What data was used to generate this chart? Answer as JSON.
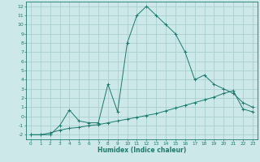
{
  "line1_x": [
    0,
    1,
    2,
    3,
    4,
    5,
    6,
    7,
    8,
    9,
    10,
    11,
    12,
    13,
    14,
    15,
    16,
    17,
    18,
    19,
    20,
    21,
    22,
    23
  ],
  "line1_y": [
    -2,
    -2,
    -2,
    -1.0,
    0.7,
    -0.5,
    -0.7,
    -0.7,
    3.5,
    0.5,
    8.0,
    11.0,
    12.0,
    11.0,
    10.0,
    9.0,
    7.0,
    4.0,
    4.5,
    3.5,
    3.0,
    2.5,
    1.5,
    1.0
  ],
  "line2_x": [
    0,
    1,
    2,
    3,
    4,
    5,
    6,
    7,
    8,
    9,
    10,
    11,
    12,
    13,
    14,
    15,
    16,
    17,
    18,
    19,
    20,
    21,
    22,
    23
  ],
  "line2_y": [
    -2,
    -2,
    -1.8,
    -1.5,
    -1.3,
    -1.2,
    -1.0,
    -0.9,
    -0.7,
    -0.5,
    -0.3,
    -0.1,
    0.1,
    0.3,
    0.6,
    0.9,
    1.2,
    1.5,
    1.8,
    2.1,
    2.5,
    2.8,
    0.8,
    0.5
  ],
  "line_color": "#1a7a6e",
  "bg_color": "#cce8e8",
  "grid_color": "#aacfcf",
  "xlabel": "Humidex (Indice chaleur)",
  "xlim": [
    -0.5,
    23.5
  ],
  "ylim": [
    -2.5,
    12.5
  ],
  "yticks": [
    -2,
    -1,
    0,
    1,
    2,
    3,
    4,
    5,
    6,
    7,
    8,
    9,
    10,
    11,
    12
  ],
  "xticks": [
    0,
    1,
    2,
    3,
    4,
    5,
    6,
    7,
    8,
    9,
    10,
    11,
    12,
    13,
    14,
    15,
    16,
    17,
    18,
    19,
    20,
    21,
    22,
    23
  ]
}
